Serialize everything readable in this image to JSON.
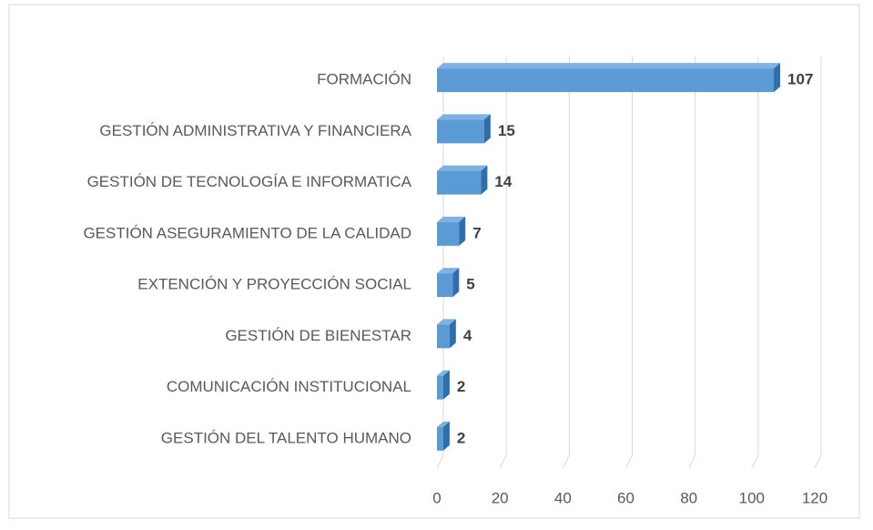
{
  "chart_data": {
    "type": "bar",
    "orientation": "horizontal",
    "three_d": true,
    "categories": [
      "FORMACIÓN",
      "GESTIÓN ADMINISTRATIVA Y FINANCIERA",
      "GESTIÓN DE TECNOLOGÍA E INFORMATICA",
      "GESTIÓN ASEGURAMIENTO DE LA CALIDAD",
      "EXTENCIÓN Y PROYECCIÓN SOCIAL",
      "GESTIÓN DE BIENESTAR",
      "COMUNICACIÓN INSTITUCIONAL",
      "GESTIÓN DEL TALENTO HUMANO"
    ],
    "values": [
      107,
      15,
      14,
      7,
      5,
      4,
      2,
      2
    ],
    "color": "#5b9bd5",
    "xlim": [
      0,
      120
    ],
    "xticks": [
      0,
      20,
      40,
      60,
      80,
      100,
      120
    ],
    "grid": true
  }
}
